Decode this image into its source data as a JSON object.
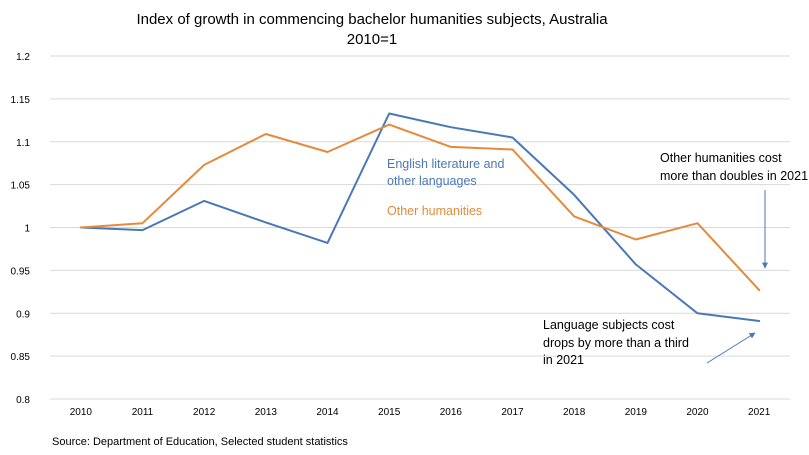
{
  "chart_data": {
    "type": "line",
    "title": "Index of growth in commencing bachelor humanities subjects, Australia",
    "subtitle": "2010=1",
    "xlabel": "",
    "ylabel": "",
    "categories": [
      "2010",
      "2011",
      "2012",
      "2013",
      "2014",
      "2015",
      "2016",
      "2017",
      "2018",
      "2019",
      "2020",
      "2021"
    ],
    "ylim": [
      0.8,
      1.2
    ],
    "yticks": [
      "0.8",
      "0.85",
      "0.9",
      "0.95",
      "1",
      "1.05",
      "1.1",
      "1.15",
      "1.2"
    ],
    "grid": true,
    "series": [
      {
        "name": "English literature and other languages",
        "label_lines": [
          "English literature and",
          "other languages"
        ],
        "color": "#4a78b6",
        "values": [
          1.0,
          0.997,
          1.031,
          1.006,
          0.982,
          1.133,
          1.117,
          1.105,
          1.038,
          0.957,
          0.9,
          0.891
        ]
      },
      {
        "name": "Other humanities",
        "label_lines": [
          "Other humanities"
        ],
        "color": "#e48a3c",
        "values": [
          1.0,
          1.005,
          1.073,
          1.109,
          1.088,
          1.12,
          1.094,
          1.091,
          1.013,
          0.986,
          1.005,
          0.927
        ]
      }
    ],
    "annotations": [
      {
        "name": "other-humanities-note",
        "lines": [
          "Other humanities cost",
          "more than doubles in 2021"
        ]
      },
      {
        "name": "language-note",
        "lines": [
          "Language subjects cost",
          "drops by more than a third",
          "in 2021"
        ]
      }
    ],
    "source": "Source: Department of Education, Selected student statistics"
  },
  "colors": {
    "grid": "#d9d9d9",
    "arrow": "#4a78b6"
  }
}
